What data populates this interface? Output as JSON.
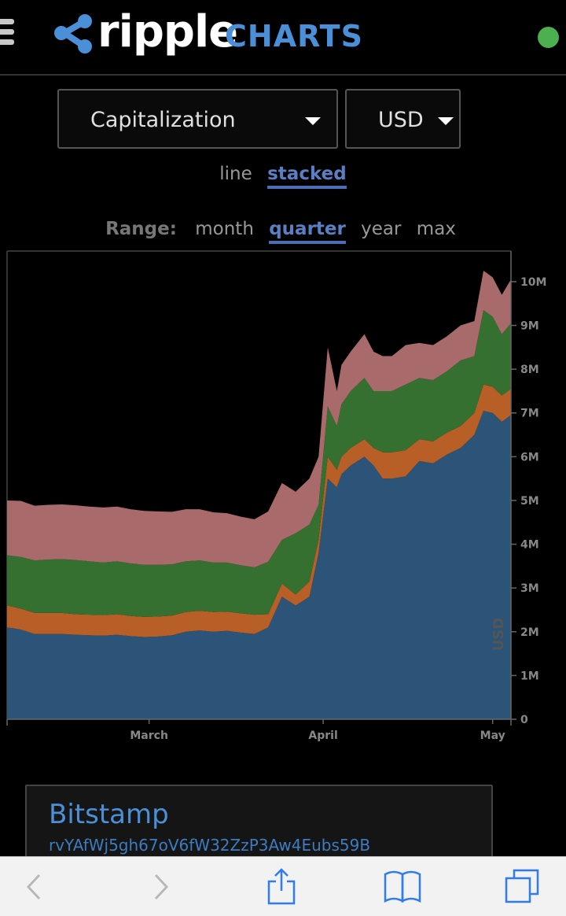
{
  "header": {
    "brand_name": "ripple",
    "brand_suffix": "CHARTS",
    "menu_icon": "hamburger-icon",
    "logo_icon": "ripple-logo-icon",
    "status_color": "#4caf50"
  },
  "controls": {
    "metric": "Capitalization",
    "currency": "USD",
    "modes": [
      "line",
      "stacked"
    ],
    "active_mode": "stacked",
    "range_label": "Range:",
    "ranges": [
      "month",
      "quarter",
      "year",
      "max"
    ],
    "active_range": "quarter"
  },
  "chart_data": {
    "type": "area",
    "stacked": true,
    "ylabel": "USD",
    "y_ticks": [
      "0",
      "1M",
      "2M",
      "3M",
      "4M",
      "5M",
      "6M",
      "7M",
      "8M",
      "9M",
      "10M"
    ],
    "ylim": [
      0,
      10700000
    ],
    "x_ticks": [
      {
        "label": "March",
        "x": 31
      },
      {
        "label": "April",
        "x": 69
      },
      {
        "label": "May",
        "x": 106
      }
    ],
    "xlim": [
      0,
      110
    ],
    "x": [
      0,
      3,
      6,
      9,
      12,
      15,
      18,
      21,
      24,
      27,
      30,
      33,
      36,
      39,
      42,
      45,
      48,
      51,
      54,
      57,
      60,
      63,
      66,
      68,
      70,
      72,
      73,
      75,
      78,
      80,
      82,
      84,
      87,
      90,
      93,
      96,
      99,
      102,
      104,
      106,
      108,
      110
    ],
    "colors": [
      "#2b5478",
      "#b75f26",
      "#357030",
      "#a86a6a"
    ],
    "series": [
      {
        "values": [
          2.1,
          2.05,
          1.95,
          1.95,
          1.95,
          1.93,
          1.92,
          1.91,
          1.93,
          1.9,
          1.88,
          1.89,
          1.92,
          2.0,
          2.03,
          2.0,
          2.02,
          1.98,
          1.95,
          2.1,
          2.8,
          2.6,
          2.8,
          3.8,
          5.5,
          5.3,
          5.6,
          5.8,
          6.0,
          5.8,
          5.5,
          5.5,
          5.55,
          5.9,
          5.85,
          6.05,
          6.2,
          6.5,
          7.05,
          7.0,
          6.8,
          6.95
        ]
      },
      {
        "values": [
          0.5,
          0.48,
          0.48,
          0.48,
          0.48,
          0.47,
          0.47,
          0.47,
          0.47,
          0.46,
          0.46,
          0.46,
          0.45,
          0.45,
          0.45,
          0.45,
          0.44,
          0.44,
          0.44,
          0.3,
          0.3,
          0.25,
          0.35,
          0.3,
          0.5,
          0.4,
          0.4,
          0.4,
          0.4,
          0.4,
          0.6,
          0.6,
          0.6,
          0.5,
          0.5,
          0.5,
          0.5,
          0.5,
          0.6,
          0.6,
          0.6,
          0.6
        ]
      },
      {
        "values": [
          1.15,
          1.18,
          1.2,
          1.22,
          1.23,
          1.24,
          1.22,
          1.2,
          1.21,
          1.2,
          1.19,
          1.18,
          1.17,
          1.16,
          1.15,
          1.13,
          1.12,
          1.1,
          1.08,
          1.2,
          1.0,
          1.4,
          1.3,
          0.8,
          1.15,
          1.0,
          1.2,
          1.3,
          1.4,
          1.3,
          1.4,
          1.4,
          1.5,
          1.4,
          1.4,
          1.4,
          1.5,
          1.3,
          1.7,
          1.6,
          1.4,
          1.5
        ]
      },
      {
        "values": [
          1.25,
          1.28,
          1.25,
          1.25,
          1.25,
          1.25,
          1.25,
          1.26,
          1.25,
          1.24,
          1.23,
          1.22,
          1.2,
          1.19,
          1.17,
          1.15,
          1.13,
          1.11,
          1.1,
          1.15,
          1.3,
          0.95,
          1.05,
          1.1,
          1.35,
          0.8,
          0.9,
          0.9,
          1.0,
          0.9,
          0.8,
          0.8,
          0.9,
          0.8,
          0.8,
          0.8,
          0.8,
          0.8,
          0.9,
          0.9,
          0.9,
          1.0
        ]
      }
    ]
  },
  "card": {
    "name": "Bitstamp",
    "address": "rvYAfWj5gh67oV6fW32ZzP3Aw4Eubs59B"
  },
  "toolbar": {
    "items": [
      "back-icon",
      "forward-icon",
      "share-icon",
      "bookmarks-icon",
      "tabs-icon"
    ]
  }
}
